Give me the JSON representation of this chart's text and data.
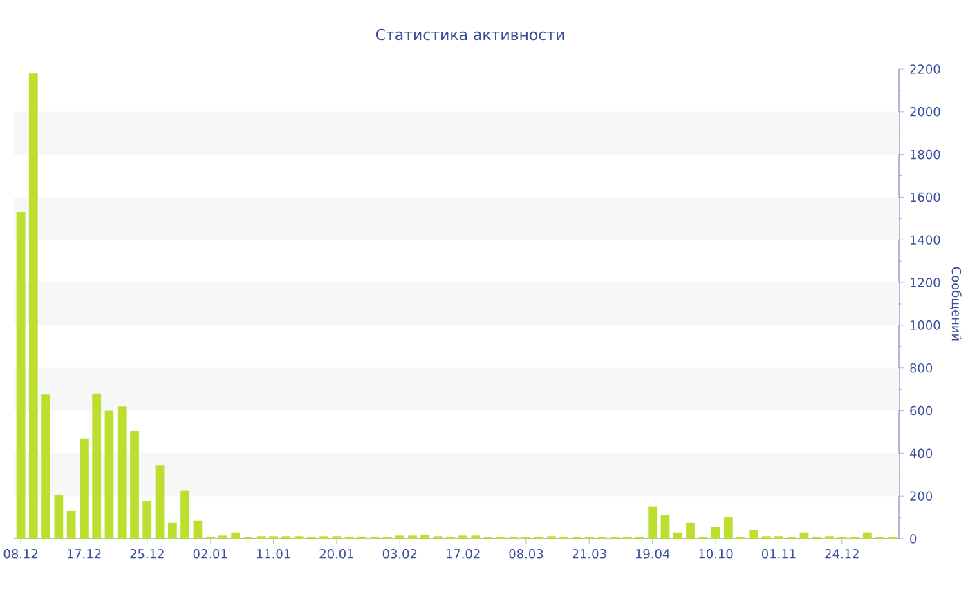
{
  "chart_data": {
    "type": "bar",
    "title": "Статистика активности",
    "ylabel": "Сообщений",
    "categories": [
      "08.12",
      null,
      null,
      null,
      null,
      "17.12",
      null,
      null,
      null,
      null,
      "25.12",
      null,
      null,
      null,
      null,
      "02.01",
      null,
      null,
      null,
      null,
      "11.01",
      null,
      null,
      null,
      null,
      "20.01",
      null,
      null,
      null,
      null,
      "03.02",
      null,
      null,
      null,
      null,
      "17.02",
      null,
      null,
      null,
      null,
      "08.03",
      null,
      null,
      null,
      null,
      "21.03",
      null,
      null,
      null,
      null,
      "19.04",
      null,
      null,
      null,
      null,
      "10.10",
      null,
      null,
      null,
      null,
      "01.11",
      null,
      null,
      null,
      null,
      "24.12",
      null,
      null,
      null,
      null
    ],
    "values": [
      1530,
      2180,
      675,
      205,
      130,
      470,
      680,
      600,
      620,
      505,
      175,
      345,
      75,
      225,
      85,
      10,
      15,
      30,
      8,
      12,
      12,
      12,
      12,
      8,
      12,
      12,
      10,
      10,
      10,
      8,
      15,
      15,
      20,
      12,
      10,
      15,
      15,
      8,
      8,
      8,
      8,
      10,
      12,
      10,
      8,
      10,
      8,
      8,
      10,
      10,
      150,
      110,
      30,
      75,
      10,
      55,
      100,
      8,
      40,
      12,
      12,
      8,
      30,
      10,
      12,
      8,
      8,
      30,
      8,
      8
    ],
    "color": "#bcdf2f",
    "ylim": [
      0,
      2200
    ],
    "yticks": [
      0,
      {
        "value": 100,
        "label": null
      },
      200,
      {
        "value": 300,
        "label": null
      },
      400,
      {
        "value": 500,
        "label": null
      },
      600,
      {
        "value": 700,
        "label": null
      },
      800,
      {
        "value": 900,
        "label": null
      },
      1000,
      {
        "value": 1100,
        "label": null
      },
      1200,
      {
        "value": 1300,
        "label": null
      },
      1400,
      {
        "value": 1500,
        "label": null
      },
      1600,
      {
        "value": 1700,
        "label": null
      },
      1800,
      {
        "value": 1900,
        "label": null
      },
      2000,
      {
        "value": 2100,
        "label": null
      },
      2200
    ],
    "bands": [
      {
        "axis": "y",
        "from": 200,
        "to": 400,
        "color": "#f7f7f7"
      },
      {
        "axis": "y",
        "from": 600,
        "to": 800,
        "color": "#f7f7f7"
      },
      {
        "axis": "y",
        "from": 1000,
        "to": 1200,
        "color": "#f7f7f7"
      },
      {
        "axis": "y",
        "from": 1400,
        "to": 1600,
        "color": "#f7f7f7"
      },
      {
        "axis": "y",
        "from": 1800,
        "to": 2000,
        "color": "#f7f7f7"
      }
    ]
  }
}
